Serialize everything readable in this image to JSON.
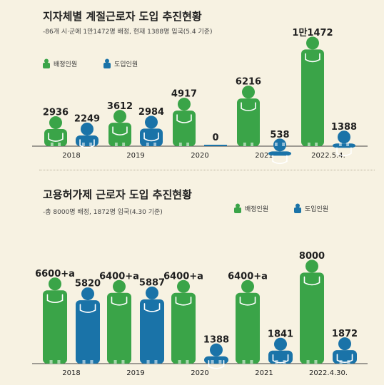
{
  "colors": {
    "green": "#3aa448",
    "blue": "#1a73a8",
    "ink": "#1f1f1f",
    "axis": "#444444"
  },
  "legend": {
    "assigned": "배정인원",
    "introduced": "도입인원"
  },
  "chart_data": [
    {
      "type": "bar",
      "title": "지자체별 계절근로자 도입 추진현황",
      "subtitle": "-86개 시·군에 1만1472명 배정, 현재 1388명 입국(5.4 기준)",
      "categories": [
        "2018",
        "2019",
        "2020",
        "2021",
        "2022.5.4."
      ],
      "series": [
        {
          "name": "배정인원",
          "values": [
            2936,
            3612,
            4917,
            6216,
            11472
          ]
        },
        {
          "name": "도입인원",
          "values": [
            2249,
            2984,
            0,
            538,
            1388
          ]
        }
      ],
      "data_labels": {
        "배정인원": [
          "2936",
          "3612",
          "4917",
          "6216",
          "1만1472"
        ],
        "도입인원": [
          "2249",
          "2984",
          "0",
          "538",
          "1388"
        ]
      },
      "ylim": [
        0,
        11472
      ]
    },
    {
      "type": "bar",
      "title": "고용허가제 근로자 도입 추진현황",
      "subtitle": "-총 8000명 배정, 1872명 입국(4.30 기준)",
      "categories": [
        "2018",
        "2019",
        "2020",
        "2021",
        "2022.4.30."
      ],
      "series": [
        {
          "name": "배정인원",
          "values": [
            6600,
            6400,
            6400,
            6400,
            8000
          ]
        },
        {
          "name": "도입인원",
          "values": [
            5820,
            5887,
            1388,
            1841,
            1872
          ]
        }
      ],
      "data_labels": {
        "배정인원": [
          "6600+a",
          "6400+a",
          "6400+a",
          "6400+a",
          "8000"
        ],
        "도입인원": [
          "5820",
          "5887",
          "1388",
          "1841",
          "1872"
        ]
      },
      "ylim": [
        0,
        8000
      ]
    }
  ]
}
